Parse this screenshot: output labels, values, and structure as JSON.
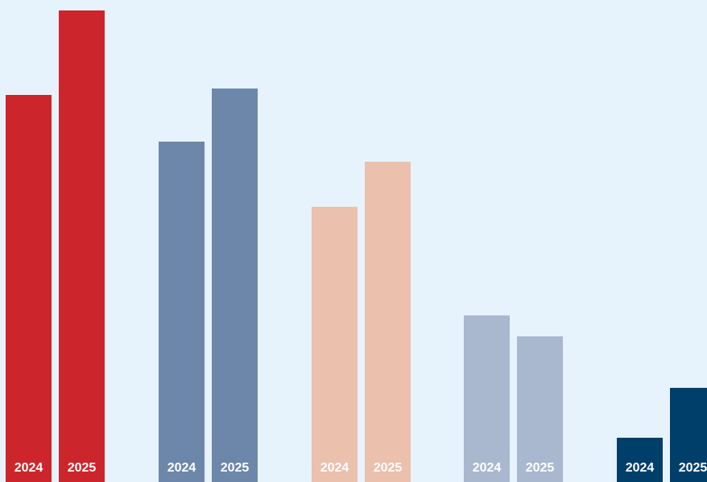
{
  "chart_data": {
    "type": "bar",
    "title": "",
    "xlabel": "",
    "ylabel": "",
    "grid": false,
    "legend": "none",
    "background": "#e6f3fc",
    "label_color": "#ffffff",
    "groups": [
      {
        "color": "#cc252b",
        "bars": [
          {
            "label": "2024",
            "value": 481
          },
          {
            "label": "2025",
            "value": 586
          }
        ]
      },
      {
        "color": "#6c87a9",
        "bars": [
          {
            "label": "2024",
            "value": 423
          },
          {
            "label": "2025",
            "value": 489
          }
        ]
      },
      {
        "color": "#ebc0ac",
        "bars": [
          {
            "label": "2024",
            "value": 342
          },
          {
            "label": "2025",
            "value": 398
          }
        ]
      },
      {
        "color": "#a9b8cf",
        "bars": [
          {
            "label": "2024",
            "value": 207
          },
          {
            "label": "2025",
            "value": 181
          }
        ]
      },
      {
        "color": "#003f6a",
        "bars": [
          {
            "label": "2024",
            "value": 55
          },
          {
            "label": "2025",
            "value": 117
          }
        ]
      }
    ]
  }
}
